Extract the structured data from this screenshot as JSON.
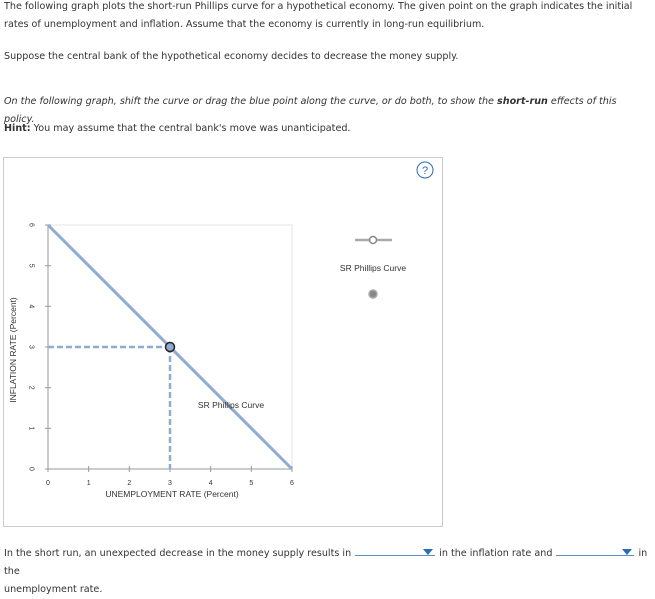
{
  "intro": "The following graph plots the short-run Phillips curve for a hypothetical economy. The given point on the graph indicates the initial rates of unemployment and inflation. Assume that the economy is currently in long-run equilibrium.",
  "scenario": "Suppose the central bank of the hypothetical economy decides to decrease the money supply.",
  "instruction": {
    "prefix": "On the following graph, shift the curve or drag the blue point along the curve, or do both, to show the",
    "emphasis": "short-run",
    "suffix": "effects of this policy."
  },
  "hint": {
    "label": "Hint:",
    "text": "You may assume that the central bank's move was unanticipated."
  },
  "help_icon": "?",
  "chart_data": {
    "type": "line",
    "x_label": "UNEMPLOYMENT RATE (Percent)",
    "y_label": "INFLATION RATE (Percent)",
    "xlim": [
      0,
      6
    ],
    "ylim": [
      0,
      6
    ],
    "xticks": [
      0,
      1,
      2,
      3,
      4,
      5,
      6
    ],
    "yticks": [
      0,
      1,
      2,
      3,
      4,
      5,
      6
    ],
    "series": [
      {
        "name": "SR Phillips Curve",
        "color": "#8eabd3",
        "x": [
          0,
          6
        ],
        "values": [
          6,
          0
        ]
      }
    ],
    "point": {
      "x": 3,
      "y": 3
    }
  },
  "answer": {
    "part1": "In the short run, an unexpected decrease in the money supply results in",
    "part2": "in the inflation rate and",
    "part3": "in the",
    "part4": "unemployment rate."
  }
}
